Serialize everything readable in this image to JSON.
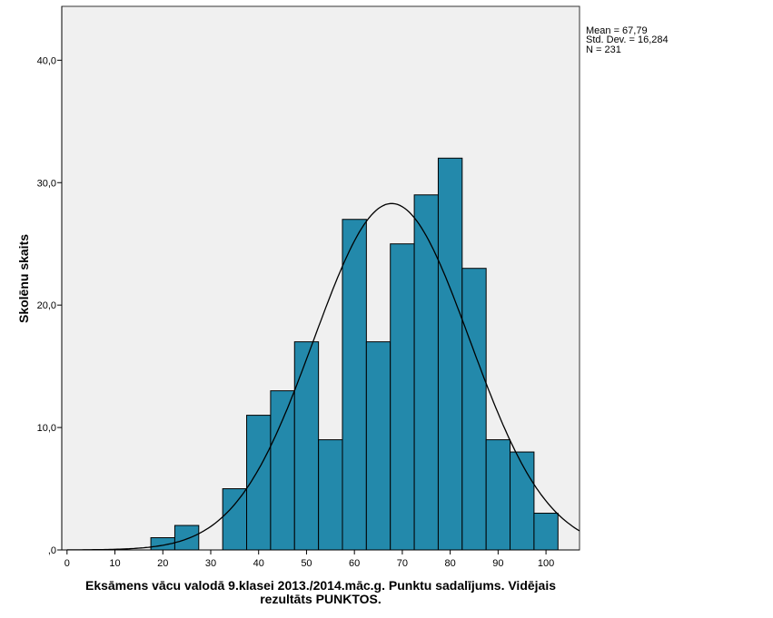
{
  "chart_data": {
    "type": "bar",
    "subtype": "histogram",
    "xlabel": "Eksāmens vācu valodā 9.klasei 2013./2014.māc.g. Punktu sadalījums. Vidējais rezultāts PUNKTOS.",
    "xlabel_lines": [
      "Eksāmens vācu valodā 9.klasei 2013./2014.māc.g. Punktu sadalījums. Vidējais",
      "rezultāts PUNKTOS."
    ],
    "ylabel": "Skolēnu skaits",
    "xlim": [
      -1.1,
      107
    ],
    "ylim": [
      0,
      44.4
    ],
    "x_ticks": [
      0,
      10,
      20,
      30,
      40,
      50,
      60,
      70,
      80,
      90,
      100
    ],
    "x_tick_labels": [
      "0",
      "10",
      "20",
      "30",
      "40",
      "50",
      "60",
      "70",
      "80",
      "90",
      "100"
    ],
    "y_ticks": [
      0,
      10,
      20,
      30,
      40
    ],
    "y_tick_labels": [
      ",0",
      "10,0",
      "20,0",
      "30,0",
      "40,0"
    ],
    "bin_width": 5,
    "bin_centers": [
      20,
      25,
      30,
      35,
      40,
      45,
      50,
      55,
      60,
      65,
      70,
      75,
      80,
      85,
      90,
      95,
      100
    ],
    "values": [
      1,
      2,
      0,
      5,
      11,
      13,
      17,
      9,
      27,
      17,
      25,
      29,
      32,
      23,
      9,
      8,
      3
    ],
    "normal_curve": {
      "mean": 67.79,
      "std": 16.284,
      "n": 231
    },
    "legend": [
      "Mean = 67,79",
      "Std. Dev. = 16,284",
      "N = 231"
    ],
    "legend_position": "top-right",
    "grid": false,
    "colors": {
      "bar": "#2389ab",
      "plot_bg": "#f0f0f0",
      "curve": "#000000"
    }
  }
}
